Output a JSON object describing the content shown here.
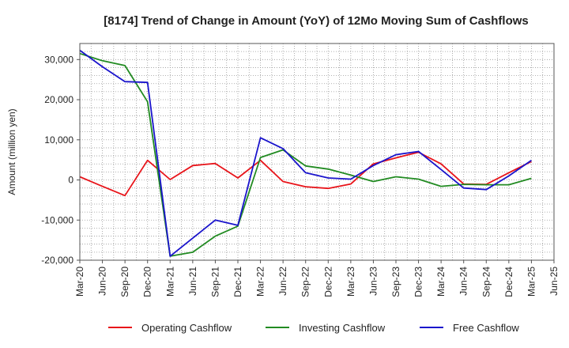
{
  "chart_data": {
    "type": "line",
    "title": "[8174]  Trend of Change in Amount (YoY) of 12Mo Moving Sum of Cashflows",
    "xlabel": "",
    "ylabel": "Amount (million yen)",
    "ylim": [
      -20000,
      34000
    ],
    "yticks": [
      -20000,
      -10000,
      0,
      10000,
      20000,
      30000
    ],
    "ytick_labels": [
      "-20,000",
      "-10,000",
      "0",
      "10,000",
      "20,000",
      "30,000"
    ],
    "categories": [
      "Mar-20",
      "Jun-20",
      "Sep-20",
      "Dec-20",
      "Mar-21",
      "Jun-21",
      "Sep-21",
      "Dec-21",
      "Mar-22",
      "Jun-22",
      "Sep-22",
      "Dec-22",
      "Mar-23",
      "Jun-23",
      "Sep-23",
      "Dec-23",
      "Mar-24",
      "Jun-24",
      "Sep-24",
      "Dec-24",
      "Mar-25",
      "Jun-25"
    ],
    "grid": true,
    "legend_position": "bottom",
    "series": [
      {
        "name": "Operating Cashflow",
        "color": "#e8141a",
        "values": [
          800,
          -1600,
          -3900,
          4900,
          100,
          3600,
          4100,
          500,
          4900,
          -400,
          -1700,
          -2100,
          -1000,
          4000,
          5500,
          6900,
          4000,
          -1000,
          -1100,
          1800,
          4600,
          null
        ]
      },
      {
        "name": "Investing Cashflow",
        "color": "#228b22",
        "values": [
          31500,
          29700,
          28500,
          19500,
          -19000,
          -18000,
          -14000,
          -11500,
          5600,
          7500,
          3500,
          2700,
          1200,
          -400,
          800,
          200,
          -1600,
          -1100,
          -1200,
          -1200,
          400,
          null
        ]
      },
      {
        "name": "Free Cashflow",
        "color": "#1a14cc",
        "values": [
          32300,
          28200,
          24500,
          24300,
          -19000,
          -14500,
          -10000,
          -11300,
          10500,
          7800,
          1800,
          500,
          200,
          3600,
          6300,
          7100,
          2600,
          -2000,
          -2400,
          1000,
          4900,
          null
        ]
      }
    ]
  }
}
